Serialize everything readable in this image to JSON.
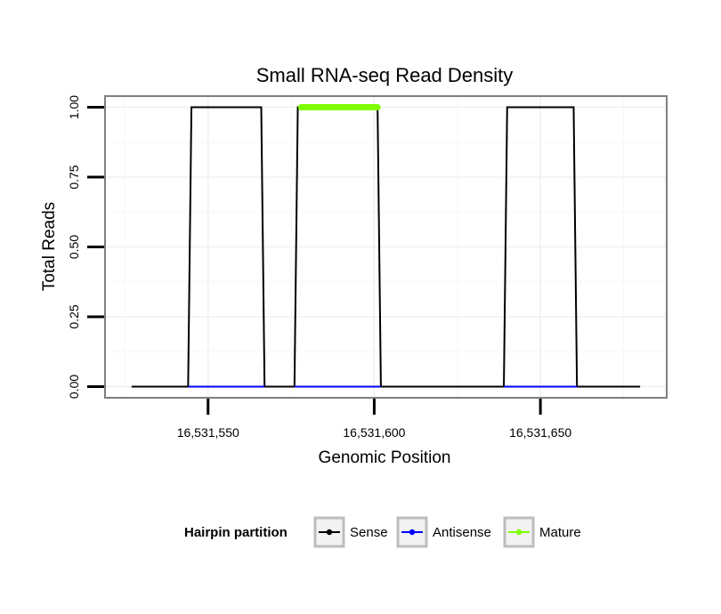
{
  "chart_data": {
    "type": "line",
    "title": "Small RNA-seq Read Density",
    "xlabel": "Genomic Position",
    "ylabel": "Total Reads",
    "xlim": [
      16531519,
      16531688
    ],
    "ylim": [
      -0.04,
      1.04
    ],
    "x_ticks": [
      16531550,
      16531600,
      16531650
    ],
    "x_tick_labels": [
      "16,531,550",
      "16,531,600",
      "16,531,650"
    ],
    "y_ticks": [
      0,
      0.25,
      0.5,
      0.75,
      1
    ],
    "y_tick_labels": [
      "0.00",
      "0.25",
      "0.50",
      "0.75",
      "1.00"
    ],
    "grid": true,
    "legend": {
      "title": "Hairpin partition",
      "position": "bottom",
      "entries": [
        "Sense",
        "Antisense",
        "Mature"
      ]
    },
    "series": [
      {
        "name": "Sense",
        "color": "#000000",
        "x": [
          16531527,
          16531544,
          16531545,
          16531566,
          16531567,
          16531576,
          16531577,
          16531601,
          16531602,
          16531639,
          16531640,
          16531660,
          16531661,
          16531680
        ],
        "y": [
          0,
          0,
          1,
          1,
          0,
          0,
          1,
          1,
          0,
          0,
          1,
          1,
          0,
          0
        ]
      },
      {
        "name": "Antisense",
        "color": "#0000ff",
        "x": [
          16531544,
          16531567,
          16531576,
          16531602,
          16531639,
          16531661
        ],
        "y": [
          0,
          0,
          0,
          0,
          0,
          0
        ],
        "segments": [
          [
            0,
            1
          ],
          [
            2,
            3
          ],
          [
            4,
            5
          ]
        ]
      },
      {
        "name": "Mature",
        "color": "#7fff00",
        "x": [
          16531578,
          16531601
        ],
        "y": [
          1,
          1
        ]
      }
    ]
  }
}
